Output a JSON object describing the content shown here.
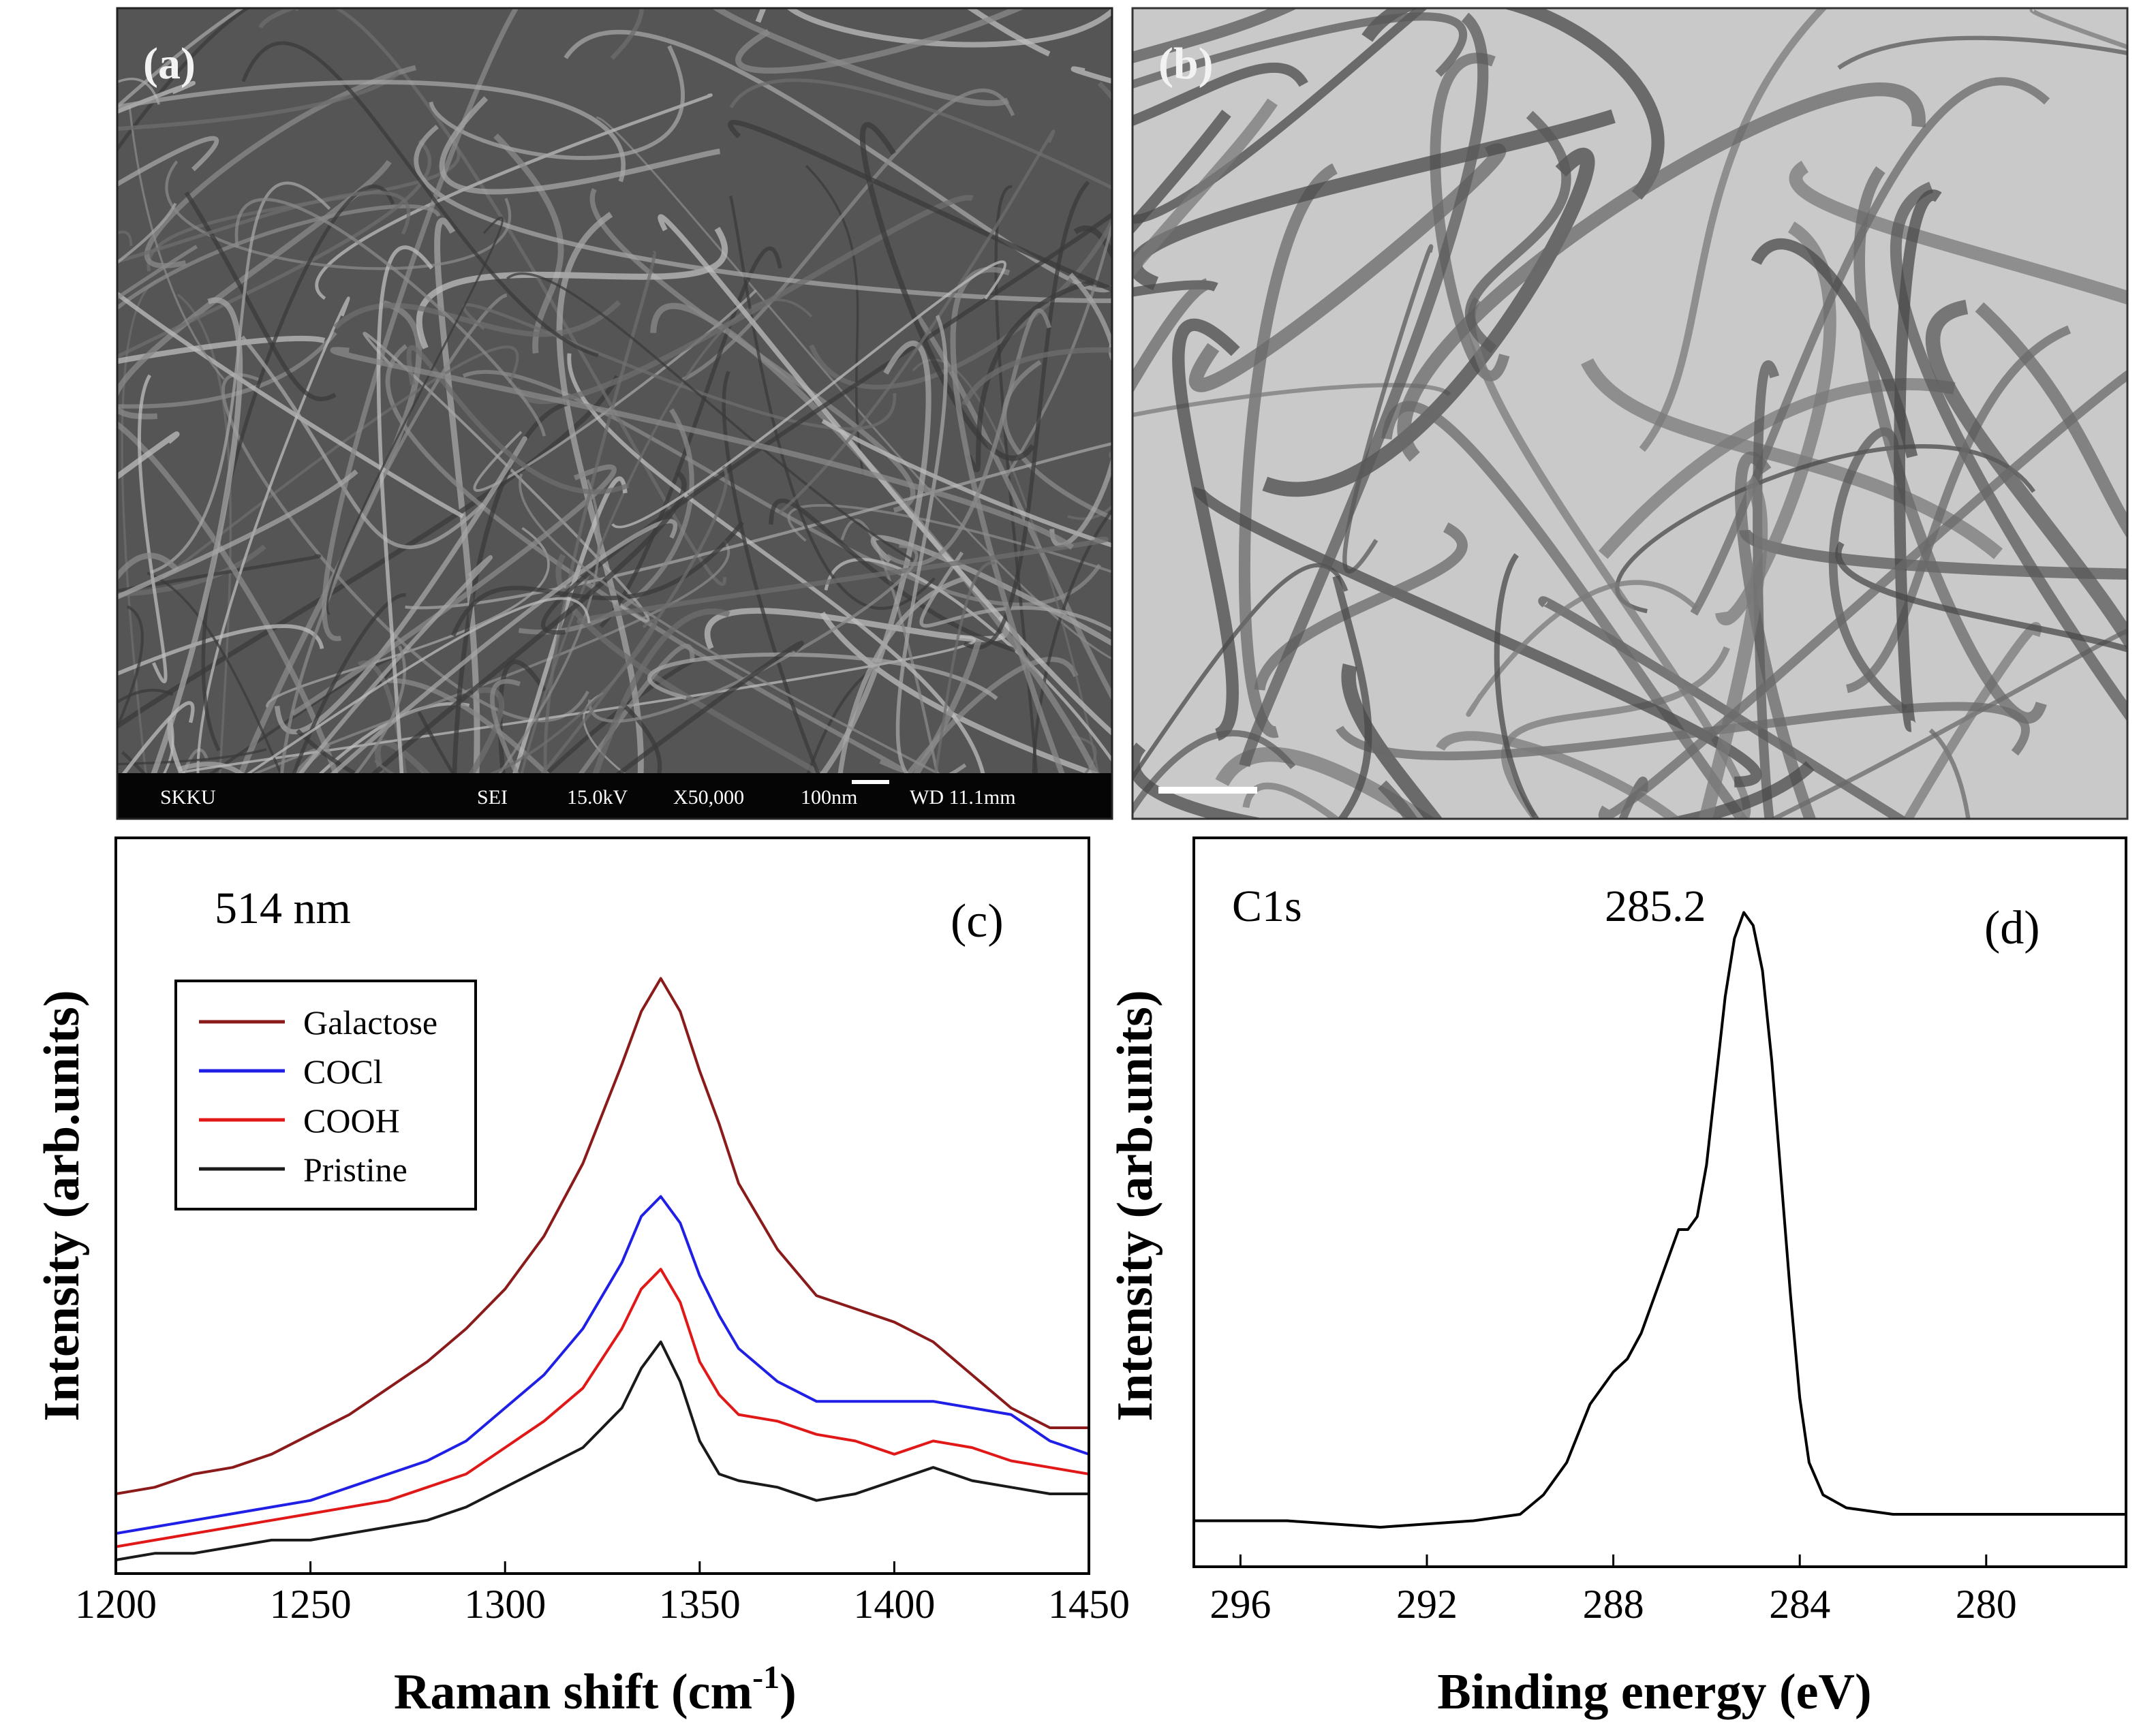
{
  "panels": {
    "a": {
      "label": "(a)",
      "info_bar": [
        "SKKU",
        "SEI",
        "15.0kV",
        "X50,000",
        "100nm",
        "WD 11.1mm"
      ]
    },
    "b": {
      "label": "(b)"
    }
  },
  "chart_data": [
    {
      "panel": "c",
      "type": "line",
      "panel_label": "(c)",
      "annotation": "514 nm",
      "xlabel": "Raman shift (cm-1)",
      "xlabel_main": "Raman shift (cm",
      "xlabel_sup": "-1",
      "xlabel_close": ")",
      "ylabel": "Intensity (arb.units)",
      "xlim": [
        1200,
        1450
      ],
      "ylim": [
        0,
        1
      ],
      "xticks": [
        "1200",
        "1250",
        "1300",
        "1350",
        "1400",
        "1450"
      ],
      "legend_position": "upper-left",
      "series": [
        {
          "name": "Galactose",
          "color": "#8b1a1a",
          "x": [
            1200,
            1210,
            1220,
            1230,
            1240,
            1250,
            1260,
            1270,
            1280,
            1290,
            1300,
            1310,
            1320,
            1330,
            1335,
            1340,
            1345,
            1350,
            1355,
            1360,
            1370,
            1380,
            1390,
            1400,
            1410,
            1420,
            1430,
            1440,
            1450
          ],
          "y": [
            0.1,
            0.11,
            0.13,
            0.14,
            0.16,
            0.19,
            0.22,
            0.26,
            0.3,
            0.35,
            0.41,
            0.49,
            0.6,
            0.75,
            0.83,
            0.88,
            0.83,
            0.74,
            0.66,
            0.57,
            0.47,
            0.4,
            0.38,
            0.36,
            0.33,
            0.28,
            0.23,
            0.2,
            0.2
          ]
        },
        {
          "name": "COCl",
          "color": "#1f1fe6",
          "x": [
            1200,
            1210,
            1220,
            1230,
            1240,
            1250,
            1260,
            1270,
            1280,
            1290,
            1300,
            1310,
            1320,
            1330,
            1335,
            1340,
            1345,
            1350,
            1355,
            1360,
            1370,
            1380,
            1390,
            1400,
            1410,
            1420,
            1430,
            1440,
            1450
          ],
          "y": [
            0.04,
            0.05,
            0.06,
            0.07,
            0.08,
            0.09,
            0.11,
            0.13,
            0.15,
            0.18,
            0.23,
            0.28,
            0.35,
            0.45,
            0.52,
            0.55,
            0.51,
            0.43,
            0.37,
            0.32,
            0.27,
            0.24,
            0.24,
            0.24,
            0.24,
            0.23,
            0.22,
            0.18,
            0.16
          ]
        },
        {
          "name": "COOH",
          "color": "#e01818",
          "x": [
            1200,
            1210,
            1220,
            1230,
            1240,
            1250,
            1260,
            1270,
            1280,
            1290,
            1300,
            1310,
            1320,
            1330,
            1335,
            1340,
            1345,
            1350,
            1355,
            1360,
            1370,
            1380,
            1390,
            1400,
            1410,
            1420,
            1430,
            1440,
            1450
          ],
          "y": [
            0.02,
            0.03,
            0.04,
            0.05,
            0.06,
            0.07,
            0.08,
            0.09,
            0.11,
            0.13,
            0.17,
            0.21,
            0.26,
            0.35,
            0.41,
            0.44,
            0.39,
            0.3,
            0.25,
            0.22,
            0.21,
            0.19,
            0.18,
            0.16,
            0.18,
            0.17,
            0.15,
            0.14,
            0.13
          ]
        },
        {
          "name": "Pristine",
          "color": "#1a1a1a",
          "x": [
            1200,
            1210,
            1220,
            1230,
            1240,
            1250,
            1260,
            1270,
            1280,
            1290,
            1300,
            1310,
            1320,
            1330,
            1335,
            1340,
            1345,
            1350,
            1355,
            1360,
            1370,
            1380,
            1390,
            1400,
            1410,
            1420,
            1430,
            1440,
            1450
          ],
          "y": [
            0.0,
            0.01,
            0.01,
            0.02,
            0.03,
            0.03,
            0.04,
            0.05,
            0.06,
            0.08,
            0.11,
            0.14,
            0.17,
            0.23,
            0.29,
            0.33,
            0.27,
            0.18,
            0.13,
            0.12,
            0.11,
            0.09,
            0.1,
            0.12,
            0.14,
            0.12,
            0.11,
            0.1,
            0.1
          ]
        }
      ]
    },
    {
      "panel": "d",
      "type": "line",
      "panel_label": "(d)",
      "annotation": "C1s",
      "peak_label": "285.2",
      "peak_x": 285.2,
      "xlabel": "Binding energy (eV)",
      "ylabel": "Intensity (arb.units)",
      "xlim": [
        297,
        277
      ],
      "ylim": [
        0,
        1
      ],
      "xticks": [
        "296",
        "292",
        "288",
        "284",
        "280"
      ],
      "series": [
        {
          "name": "",
          "color": "#000000",
          "x": [
            297,
            295,
            293,
            291,
            290,
            289.5,
            289,
            288.5,
            288,
            287.7,
            287.4,
            287.2,
            287,
            286.8,
            286.6,
            286.4,
            286.2,
            286,
            285.8,
            285.6,
            285.4,
            285.2,
            285,
            284.8,
            284.6,
            284.4,
            284.2,
            284,
            283.8,
            283.5,
            283,
            282,
            280,
            278,
            277
          ],
          "y": [
            0.05,
            0.05,
            0.04,
            0.05,
            0.06,
            0.09,
            0.14,
            0.23,
            0.28,
            0.3,
            0.34,
            0.38,
            0.42,
            0.46,
            0.5,
            0.5,
            0.52,
            0.6,
            0.73,
            0.86,
            0.95,
            0.99,
            0.97,
            0.9,
            0.76,
            0.58,
            0.4,
            0.24,
            0.14,
            0.09,
            0.07,
            0.06,
            0.06,
            0.06,
            0.06
          ]
        }
      ]
    }
  ]
}
